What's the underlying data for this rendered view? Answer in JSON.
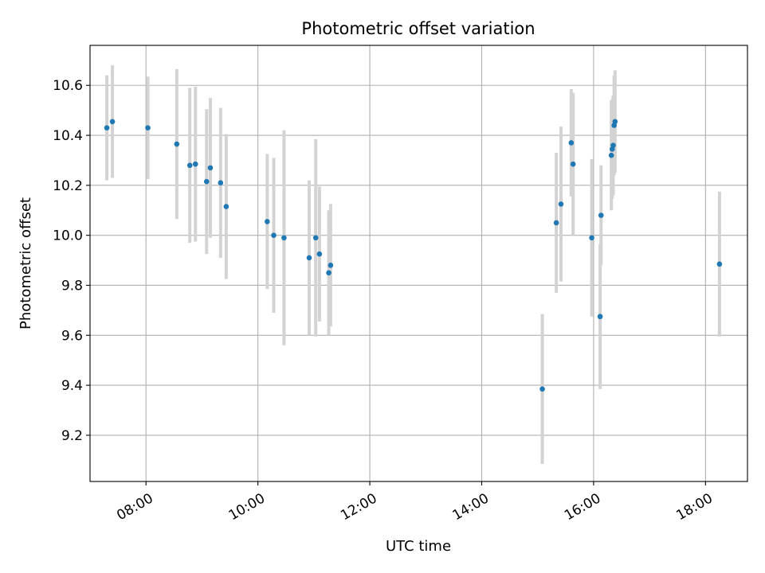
{
  "chart_data": {
    "type": "scatter",
    "title": "Photometric offset variation",
    "xlabel": "UTC time",
    "ylabel": "Photometric offset",
    "xlim": [
      "07:00",
      "18:45"
    ],
    "ylim": [
      9.015,
      10.76
    ],
    "x_ticks": [
      "08:00",
      "10:00",
      "12:00",
      "14:00",
      "16:00",
      "18:00"
    ],
    "y_ticks": [
      9.2,
      9.4,
      9.6,
      9.8,
      10.0,
      10.2,
      10.4,
      10.6
    ],
    "y_tick_labels": [
      "9.2",
      "9.4",
      "9.6",
      "9.8",
      "10.0",
      "10.2",
      "10.4",
      "10.6"
    ],
    "grid": true,
    "legend": "none",
    "colors": {
      "point": "#1f77b4",
      "errorbar": "#d3d3d3",
      "grid": "#b0b0b0"
    },
    "series": [
      {
        "points": [
          {
            "x": "07:18",
            "y": 10.43,
            "err": 0.21
          },
          {
            "x": "07:24",
            "y": 10.455,
            "err": 0.225
          },
          {
            "x": "08:02",
            "y": 10.43,
            "err": 0.205
          },
          {
            "x": "08:33",
            "y": 10.365,
            "err": 0.3
          },
          {
            "x": "08:47",
            "y": 10.28,
            "err": 0.31
          },
          {
            "x": "08:53",
            "y": 10.285,
            "err": 0.31
          },
          {
            "x": "09:05",
            "y": 10.215,
            "err": 0.29
          },
          {
            "x": "09:09",
            "y": 10.27,
            "err": 0.28
          },
          {
            "x": "09:20",
            "y": 10.21,
            "err": 0.3
          },
          {
            "x": "09:26",
            "y": 10.115,
            "err": 0.29
          },
          {
            "x": "10:10",
            "y": 10.055,
            "err": 0.27
          },
          {
            "x": "10:17",
            "y": 10.0,
            "err": 0.31
          },
          {
            "x": "10:28",
            "y": 9.99,
            "err": 0.43
          },
          {
            "x": "10:55",
            "y": 9.91,
            "err": 0.31
          },
          {
            "x": "11:02",
            "y": 9.99,
            "err": 0.395
          },
          {
            "x": "11:06",
            "y": 9.925,
            "err": 0.27
          },
          {
            "x": "11:16",
            "y": 9.85,
            "err": 0.25
          },
          {
            "x": "11:18",
            "y": 9.88,
            "err": 0.245
          },
          {
            "x": "15:05",
            "y": 9.385,
            "err": 0.3
          },
          {
            "x": "15:20",
            "y": 10.05,
            "err": 0.28
          },
          {
            "x": "15:25",
            "y": 10.125,
            "err": 0.31
          },
          {
            "x": "15:36",
            "y": 10.37,
            "err": 0.215
          },
          {
            "x": "15:38",
            "y": 10.285,
            "err": 0.285
          },
          {
            "x": "15:58",
            "y": 9.99,
            "err": 0.315
          },
          {
            "x": "16:07",
            "y": 9.675,
            "err": 0.29
          },
          {
            "x": "16:08",
            "y": 10.08,
            "err": 0.2
          },
          {
            "x": "16:19",
            "y": 10.32,
            "err": 0.22
          },
          {
            "x": "16:20",
            "y": 10.345,
            "err": 0.2
          },
          {
            "x": "16:21",
            "y": 10.36,
            "err": 0.2
          },
          {
            "x": "16:22",
            "y": 10.44,
            "err": 0.2
          },
          {
            "x": "16:23",
            "y": 10.455,
            "err": 0.205
          },
          {
            "x": "18:15",
            "y": 9.885,
            "err": 0.29
          }
        ]
      }
    ]
  }
}
